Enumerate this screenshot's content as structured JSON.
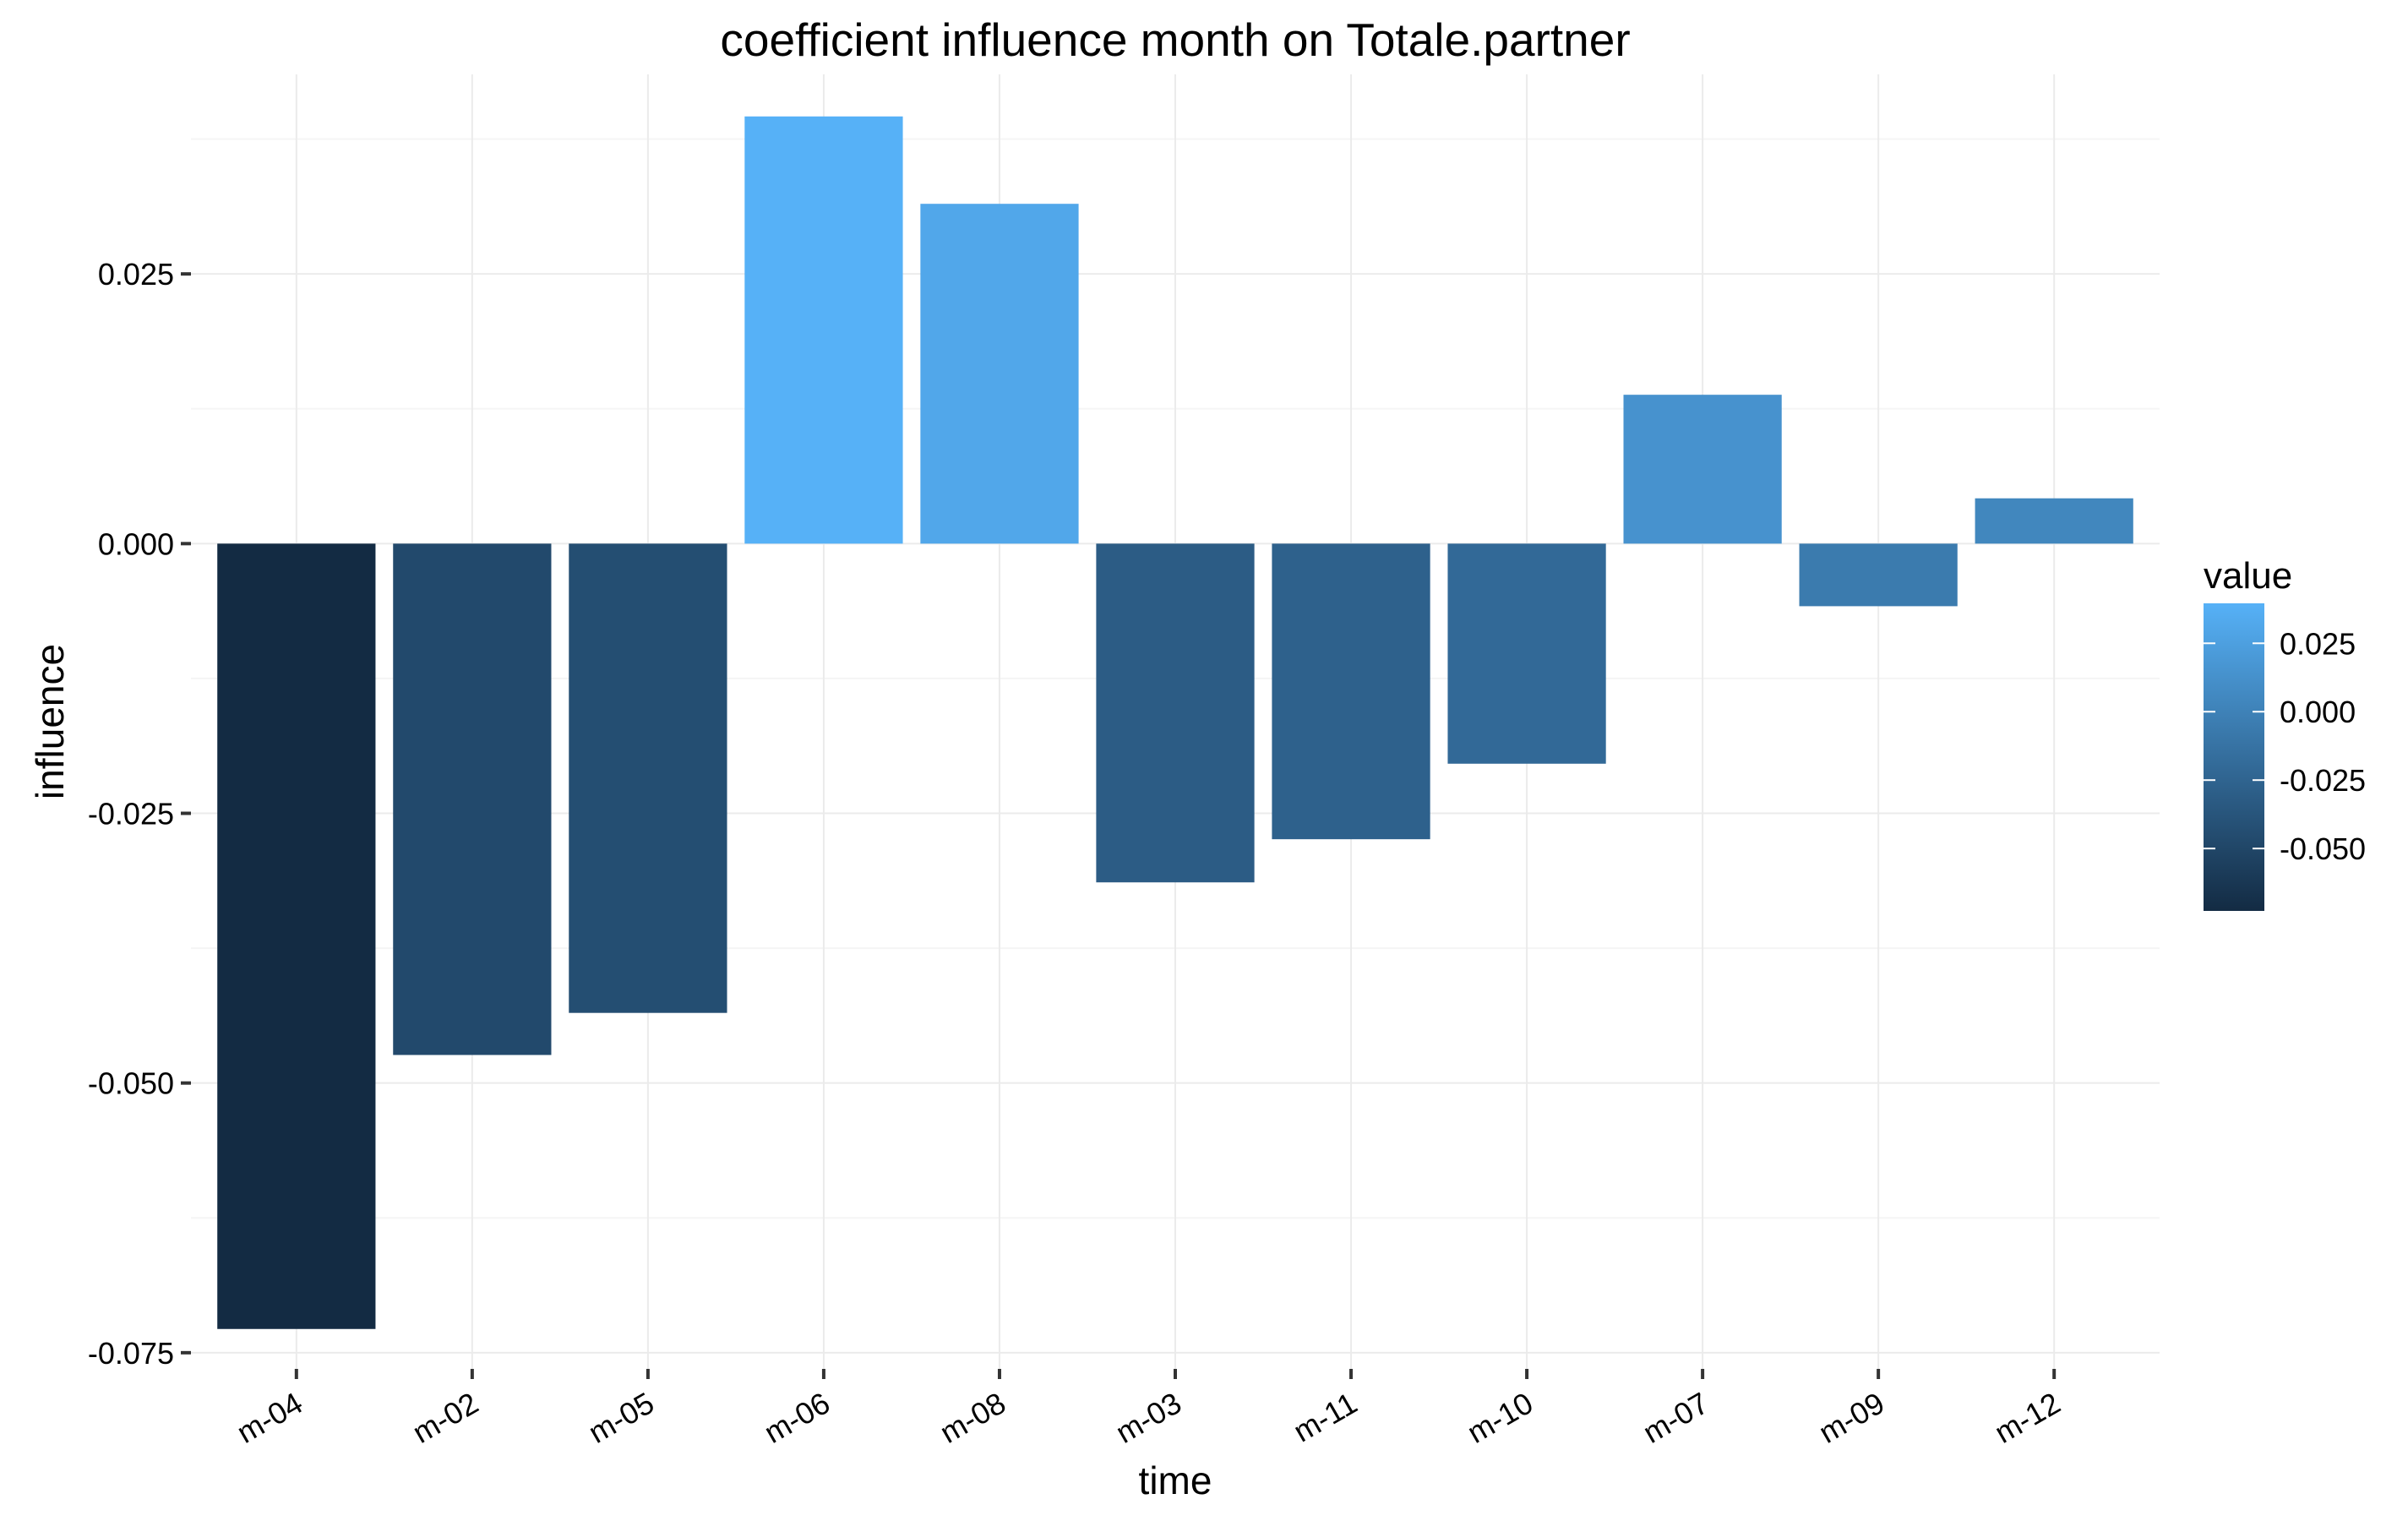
{
  "chart_data": {
    "type": "bar",
    "title": "coefficient influence  month  on Totale.partner",
    "xlabel": "time",
    "ylabel": "influence",
    "categories": [
      "m-04",
      "m-02",
      "m-05",
      "m-06",
      "m-08",
      "m-03",
      "m-11",
      "m-10",
      "m-07",
      "m-09",
      "m-12"
    ],
    "values": [
      -0.0728,
      -0.0474,
      -0.0435,
      0.0396,
      0.0315,
      -0.0314,
      -0.0274,
      -0.0204,
      0.0138,
      -0.0058,
      0.0042
    ],
    "ylim": [
      -0.0765,
      0.0435
    ],
    "yticks": [
      -0.075,
      -0.05,
      -0.025,
      0.0,
      0.025
    ],
    "ytick_labels": [
      "-0.075",
      "-0.050",
      "-0.025",
      "0.000",
      "0.025"
    ],
    "grid": true,
    "legend": {
      "title": "value",
      "placement": "right",
      "type": "gradient",
      "low_color": "#132B43",
      "high_color": "#56B1F7",
      "range": [
        -0.0728,
        0.0396
      ],
      "breaks": [
        0.025,
        0.0,
        -0.025,
        -0.05
      ],
      "labels": [
        "0.025",
        "0.000",
        "-0.025",
        "-0.050"
      ]
    }
  }
}
